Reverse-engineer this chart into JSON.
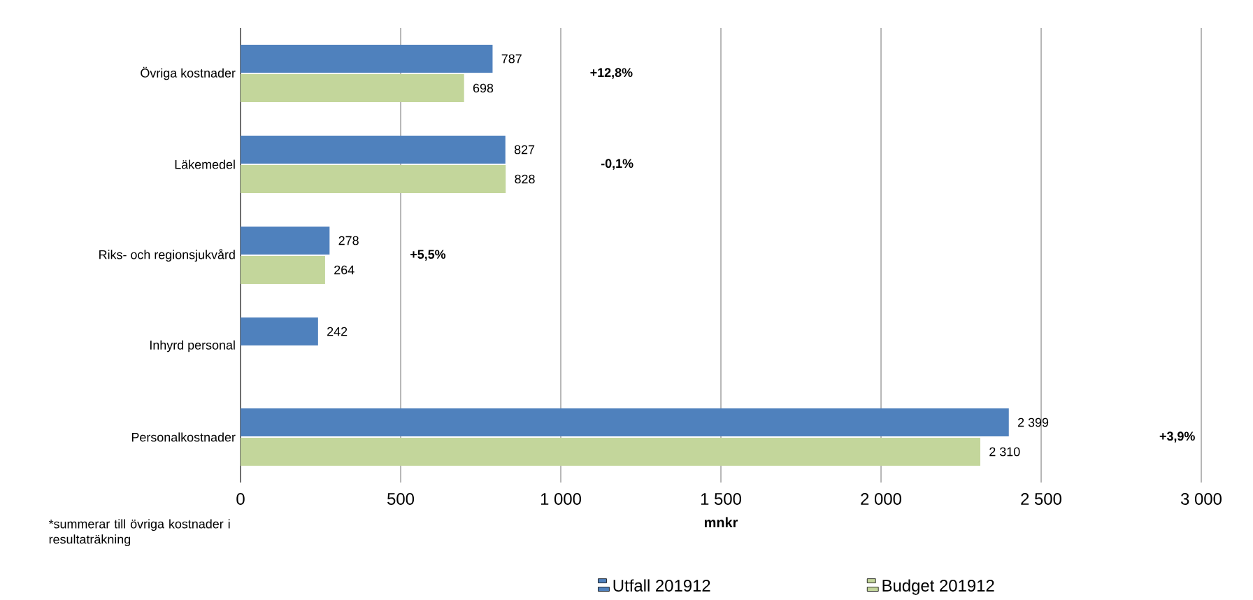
{
  "chart_data": {
    "type": "bar",
    "orientation": "horizontal",
    "categories": [
      "Övriga kostnader",
      "Läkemedel",
      "Riks- och regionsjukvård",
      "Inhyrd personal",
      "Personalkostnader"
    ],
    "series": [
      {
        "name": "Utfall 201912",
        "color": "#4f81bd",
        "values": [
          787,
          827,
          278,
          242,
          2399
        ],
        "value_labels": [
          "787",
          "827",
          "278",
          "242",
          "2 399"
        ]
      },
      {
        "name": "Budget 201912",
        "color": "#c3d69b",
        "values": [
          698,
          828,
          264,
          null,
          2310
        ],
        "value_labels": [
          "698",
          "828",
          "264",
          null,
          "2 310"
        ]
      }
    ],
    "xlim": [
      0,
      3000
    ],
    "xticks": [
      0,
      500,
      {
        "value": 1000,
        "label": "1 000"
      },
      {
        "value": 1500,
        "label": "1 500"
      },
      {
        "value": 2000,
        "label": "2 000"
      },
      {
        "value": 2500,
        "label": "2 500"
      },
      {
        "value": 3000,
        "label": "3 000"
      }
    ],
    "xlabel": "mnkr",
    "grid": "x",
    "legend": "bottom",
    "annotations": [
      "+12,8%",
      "-0,1%",
      "+5,5%",
      "+3,9%",
      "*summerar till övriga kostnader i resultaträkning"
    ]
  }
}
